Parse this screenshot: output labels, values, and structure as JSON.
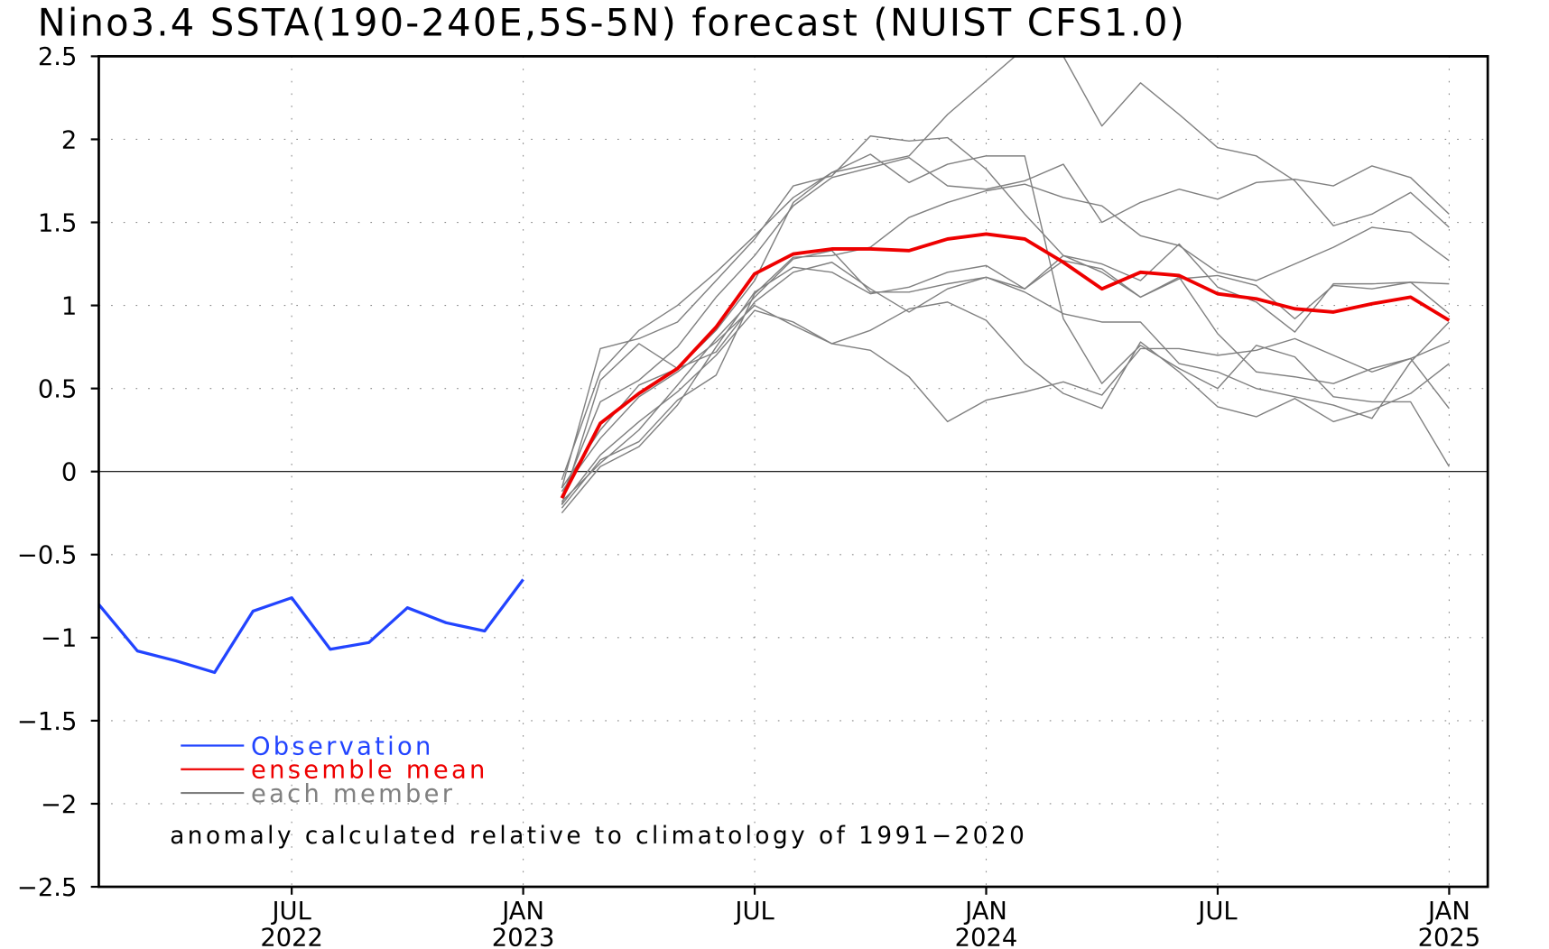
{
  "chart_data": {
    "type": "line",
    "title": "Nino3.4 SSTA(190-240E,5S-5N) forecast (NUIST CFS1.0)",
    "xlabel": "",
    "ylabel": "",
    "ylim": [
      -2.5,
      2.5
    ],
    "yticks": [
      2.5,
      2,
      1.5,
      1,
      0.5,
      0,
      -0.5,
      -1,
      -1.5,
      -2,
      -2.5
    ],
    "ytick_labels": [
      "2.5",
      "2",
      "1.5",
      "1",
      "0.5",
      "0",
      "−0.5",
      "−1",
      "−1.5",
      "−2",
      "−2.5"
    ],
    "x_start": "2022-02",
    "x_end": "2025-02",
    "xticks": [
      {
        "month_index": 5,
        "line1": "JUL",
        "line2": "2022"
      },
      {
        "month_index": 11,
        "line1": "JAN",
        "line2": "2023"
      },
      {
        "month_index": 17,
        "line1": "JUL",
        "line2": ""
      },
      {
        "month_index": 23,
        "line1": "JAN",
        "line2": "2024"
      },
      {
        "month_index": 29,
        "line1": "JUL",
        "line2": ""
      },
      {
        "month_index": 35,
        "line1": "JAN",
        "line2": "2025"
      }
    ],
    "grid": true,
    "colors": {
      "observation": "#2244ff",
      "ensemble_mean": "#ee0000",
      "member": "#808080"
    },
    "observation": {
      "start_index": 0,
      "values": [
        -0.8,
        -1.08,
        -1.14,
        -1.21,
        -0.84,
        -0.76,
        -1.07,
        -1.03,
        -0.82,
        -0.91,
        -0.96,
        -0.65
      ]
    },
    "ensemble_mean": {
      "start_index": 12,
      "values": [
        -0.16,
        0.29,
        0.47,
        0.62,
        0.87,
        1.19,
        1.31,
        1.34,
        1.34,
        1.33,
        1.4,
        1.43,
        1.4,
        1.26,
        1.1,
        1.2,
        1.18,
        1.07,
        1.04,
        0.98,
        0.96,
        1.01,
        1.05,
        0.91
      ]
    },
    "members": {
      "start_index": 12,
      "series": [
        [
          -0.05,
          0.6,
          0.85,
          1.0,
          1.2,
          1.42,
          1.65,
          1.8,
          1.85,
          1.9,
          2.15,
          2.35,
          2.55,
          2.5,
          2.08,
          2.34,
          2.15,
          1.95,
          1.9,
          1.75,
          1.48,
          1.55,
          1.68,
          1.47
        ],
        [
          -0.1,
          0.74,
          0.8,
          0.9,
          1.15,
          1.4,
          1.72,
          1.78,
          2.02,
          1.99,
          2.01,
          1.82,
          1.55,
          1.3,
          1.2,
          1.05,
          1.17,
          0.83,
          0.6,
          0.57,
          0.53,
          0.62,
          0.68,
          0.78
        ],
        [
          -0.2,
          0.55,
          0.77,
          0.62,
          0.85,
          1.15,
          1.62,
          1.8,
          1.91,
          1.74,
          1.85,
          1.9,
          1.9,
          0.92,
          0.53,
          0.76,
          0.62,
          0.5,
          0.76,
          0.69,
          0.45,
          0.42,
          0.42,
          0.03
        ],
        [
          -0.15,
          0.42,
          0.55,
          0.75,
          1.05,
          1.3,
          1.6,
          1.77,
          1.83,
          1.89,
          1.72,
          1.7,
          1.75,
          1.85,
          1.5,
          1.62,
          1.7,
          1.64,
          1.74,
          1.76,
          1.72,
          1.84,
          1.77,
          1.55
        ],
        [
          -0.22,
          0.07,
          0.18,
          0.43,
          0.58,
          1.07,
          1.29,
          1.3,
          1.35,
          1.53,
          1.62,
          1.69,
          1.73,
          1.65,
          1.6,
          1.42,
          1.36,
          1.2,
          1.15,
          1.25,
          1.35,
          1.47,
          1.44,
          1.27
        ],
        [
          -0.25,
          0.03,
          0.15,
          0.4,
          0.75,
          1.08,
          1.23,
          1.2,
          1.07,
          1.11,
          1.2,
          1.24,
          1.1,
          1.3,
          1.25,
          1.15,
          1.37,
          1.11,
          1.02,
          0.84,
          1.13,
          1.13,
          1.14,
          1.13
        ],
        [
          -0.18,
          0.05,
          0.25,
          0.52,
          0.8,
          1.05,
          1.28,
          1.33,
          1.08,
          1.08,
          1.13,
          1.17,
          1.1,
          1.27,
          1.22,
          1.05,
          1.16,
          1.18,
          1.12,
          0.92,
          1.12,
          1.1,
          1.14,
          0.95
        ],
        [
          -0.2,
          0.1,
          0.3,
          0.48,
          0.7,
          0.97,
          0.9,
          0.77,
          0.85,
          0.98,
          1.02,
          0.91,
          0.65,
          0.47,
          0.38,
          0.78,
          0.6,
          0.39,
          0.33,
          0.44,
          0.3,
          0.37,
          0.47,
          0.65
        ],
        [
          -0.12,
          0.2,
          0.45,
          0.6,
          0.78,
          1.0,
          0.88,
          0.77,
          0.73,
          0.57,
          0.3,
          0.43,
          0.48,
          0.54,
          0.46,
          0.74,
          0.74,
          0.7,
          0.73,
          0.8,
          0.7,
          0.6,
          0.68,
          0.38
        ],
        [
          -0.1,
          0.25,
          0.52,
          0.62,
          0.72,
          1.02,
          1.2,
          1.26,
          1.1,
          0.96,
          1.1,
          1.17,
          1.08,
          0.95,
          0.9,
          0.9,
          0.65,
          0.6,
          0.5,
          0.45,
          0.4,
          0.32,
          0.66,
          0.9
        ]
      ]
    },
    "legend": {
      "placement": "bottom-left",
      "entries": [
        "Observation",
        "ensemble mean",
        "each member"
      ]
    },
    "annotation": "anomaly calculated relative to climatology of 1991−2020"
  }
}
